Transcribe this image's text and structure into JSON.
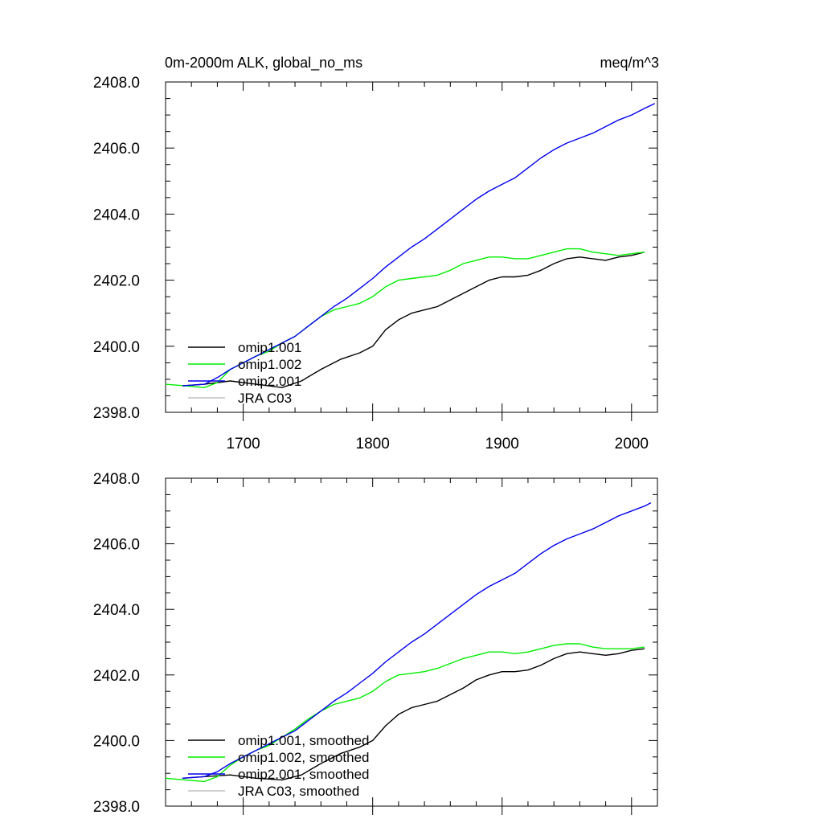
{
  "figure": {
    "title_left": "0m-2000m ALK, global_no_ms",
    "title_right": "meq/m^3"
  },
  "chart_data": [
    {
      "type": "line",
      "title": "0m-2000m ALK, global_no_ms",
      "units": "meq/m^3",
      "xlim": [
        1640,
        2020
      ],
      "ylim": [
        2398.0,
        2408.0
      ],
      "x_ticks": [
        1700,
        1800,
        1900,
        2000
      ],
      "x_tick_labels": [
        "1700",
        "1800",
        "1900",
        "2000"
      ],
      "y_ticks": [
        2398.0,
        2400.0,
        2402.0,
        2404.0,
        2406.0,
        2408.0
      ],
      "y_tick_labels": [
        "2398.0",
        "2400.0",
        "2402.0",
        "2404.0",
        "2406.0",
        "2408.0"
      ],
      "grid": false,
      "legend_position": "bottom-left",
      "series": [
        {
          "name": "omip1.001",
          "color": "#000000",
          "x": [
            1653,
            1670,
            1690,
            1710,
            1730,
            1745,
            1760,
            1775,
            1790,
            1800,
            1810,
            1820,
            1830,
            1840,
            1850,
            1860,
            1870,
            1880,
            1890,
            1900,
            1910,
            1920,
            1930,
            1940,
            1950,
            1960,
            1970,
            1980,
            1990,
            2000,
            2010
          ],
          "y": [
            2398.8,
            2398.85,
            2398.95,
            2398.85,
            2398.75,
            2398.95,
            2399.3,
            2399.6,
            2399.8,
            2400.0,
            2400.5,
            2400.8,
            2401.0,
            2401.1,
            2401.2,
            2401.4,
            2401.6,
            2401.8,
            2402.0,
            2402.1,
            2402.1,
            2402.15,
            2402.3,
            2402.5,
            2402.65,
            2402.7,
            2402.65,
            2402.6,
            2402.7,
            2402.75,
            2402.85
          ]
        },
        {
          "name": "omip1.002",
          "color": "#00ee00",
          "x": [
            1640,
            1655,
            1670,
            1680,
            1690,
            1700,
            1710,
            1720,
            1730,
            1740,
            1750,
            1760,
            1770,
            1780,
            1790,
            1800,
            1810,
            1820,
            1830,
            1840,
            1850,
            1860,
            1870,
            1880,
            1890,
            1900,
            1910,
            1920,
            1930,
            1940,
            1950,
            1960,
            1970,
            1980,
            1990,
            2000,
            2010
          ],
          "y": [
            2398.85,
            2398.8,
            2398.75,
            2398.9,
            2399.3,
            2399.5,
            2399.7,
            2399.85,
            2400.1,
            2400.3,
            2400.6,
            2400.9,
            2401.1,
            2401.2,
            2401.3,
            2401.5,
            2401.8,
            2402.0,
            2402.05,
            2402.1,
            2402.15,
            2402.3,
            2402.5,
            2402.6,
            2402.7,
            2402.7,
            2402.65,
            2402.65,
            2402.75,
            2402.85,
            2402.95,
            2402.95,
            2402.85,
            2402.8,
            2402.75,
            2402.8,
            2402.85
          ]
        },
        {
          "name": "omip2.001",
          "color": "#0000ee",
          "x": [
            1653,
            1670,
            1680,
            1690,
            1700,
            1710,
            1720,
            1730,
            1740,
            1750,
            1760,
            1770,
            1780,
            1790,
            1800,
            1810,
            1820,
            1830,
            1840,
            1850,
            1860,
            1870,
            1880,
            1890,
            1900,
            1910,
            1920,
            1930,
            1940,
            1950,
            1960,
            1970,
            1980,
            1990,
            2000,
            2010,
            2018
          ],
          "y": [
            2398.8,
            2398.85,
            2399.05,
            2399.3,
            2399.5,
            2399.7,
            2399.9,
            2400.1,
            2400.3,
            2400.6,
            2400.9,
            2401.2,
            2401.45,
            2401.75,
            2402.05,
            2402.4,
            2402.7,
            2403.0,
            2403.25,
            2403.55,
            2403.85,
            2404.15,
            2404.45,
            2404.7,
            2404.9,
            2405.1,
            2405.4,
            2405.7,
            2405.95,
            2406.15,
            2406.3,
            2406.45,
            2406.65,
            2406.85,
            2407.0,
            2407.2,
            2407.35
          ]
        },
        {
          "name": "JRA C03",
          "color": "#c0c0c0",
          "x": [],
          "y": []
        }
      ]
    },
    {
      "type": "line",
      "xlim": [
        1640,
        2020
      ],
      "ylim": [
        2398.0,
        2408.0
      ],
      "x_ticks": [
        1700,
        1800,
        1900,
        2000
      ],
      "y_ticks": [
        2398.0,
        2400.0,
        2402.0,
        2404.0,
        2406.0,
        2408.0
      ],
      "y_tick_labels": [
        "2398.0",
        "2400.0",
        "2402.0",
        "2404.0",
        "2406.0",
        "2408.0"
      ],
      "grid": false,
      "legend_position": "bottom-left",
      "series": [
        {
          "name": "omip1.001, smoothed",
          "color": "#000000",
          "x": [
            1653,
            1670,
            1690,
            1710,
            1730,
            1745,
            1760,
            1775,
            1790,
            1800,
            1810,
            1820,
            1830,
            1840,
            1850,
            1860,
            1870,
            1880,
            1890,
            1900,
            1910,
            1920,
            1930,
            1940,
            1950,
            1960,
            1970,
            1980,
            1990,
            2000,
            2010
          ],
          "y": [
            2398.85,
            2398.9,
            2398.95,
            2398.85,
            2398.8,
            2398.95,
            2399.3,
            2399.6,
            2399.8,
            2400.0,
            2400.45,
            2400.8,
            2401.0,
            2401.1,
            2401.2,
            2401.4,
            2401.6,
            2401.85,
            2402.0,
            2402.1,
            2402.1,
            2402.15,
            2402.3,
            2402.5,
            2402.65,
            2402.7,
            2402.65,
            2402.6,
            2402.65,
            2402.75,
            2402.8
          ]
        },
        {
          "name": "omip1.002, smoothed",
          "color": "#00ee00",
          "x": [
            1640,
            1655,
            1670,
            1680,
            1690,
            1700,
            1710,
            1720,
            1730,
            1740,
            1750,
            1760,
            1770,
            1780,
            1790,
            1800,
            1810,
            1820,
            1830,
            1840,
            1850,
            1860,
            1870,
            1880,
            1890,
            1900,
            1910,
            1920,
            1930,
            1940,
            1950,
            1960,
            1970,
            1980,
            1990,
            2000,
            2010
          ],
          "y": [
            2398.85,
            2398.8,
            2398.75,
            2398.9,
            2399.25,
            2399.5,
            2399.7,
            2399.85,
            2400.1,
            2400.35,
            2400.65,
            2400.9,
            2401.1,
            2401.2,
            2401.3,
            2401.5,
            2401.8,
            2402.0,
            2402.05,
            2402.1,
            2402.2,
            2402.35,
            2402.5,
            2402.6,
            2402.7,
            2402.7,
            2402.65,
            2402.7,
            2402.8,
            2402.9,
            2402.95,
            2402.95,
            2402.85,
            2402.8,
            2402.8,
            2402.8,
            2402.85
          ]
        },
        {
          "name": "omip2.001, smoothed",
          "color": "#0000ee",
          "x": [
            1653,
            1670,
            1680,
            1690,
            1700,
            1710,
            1720,
            1730,
            1740,
            1750,
            1760,
            1770,
            1780,
            1790,
            1800,
            1810,
            1820,
            1830,
            1840,
            1850,
            1860,
            1870,
            1880,
            1890,
            1900,
            1910,
            1920,
            1930,
            1940,
            1950,
            1960,
            1970,
            1980,
            1990,
            2000,
            2010,
            2015
          ],
          "y": [
            2398.85,
            2398.9,
            2399.05,
            2399.3,
            2399.5,
            2399.7,
            2399.9,
            2400.1,
            2400.3,
            2400.6,
            2400.9,
            2401.2,
            2401.45,
            2401.75,
            2402.05,
            2402.4,
            2402.7,
            2403.0,
            2403.25,
            2403.55,
            2403.85,
            2404.15,
            2404.45,
            2404.7,
            2404.9,
            2405.1,
            2405.4,
            2405.7,
            2405.95,
            2406.15,
            2406.3,
            2406.45,
            2406.65,
            2406.85,
            2407.0,
            2407.15,
            2407.25
          ]
        },
        {
          "name": "JRA C03, smoothed",
          "color": "#c0c0c0",
          "x": [],
          "y": []
        }
      ]
    }
  ]
}
